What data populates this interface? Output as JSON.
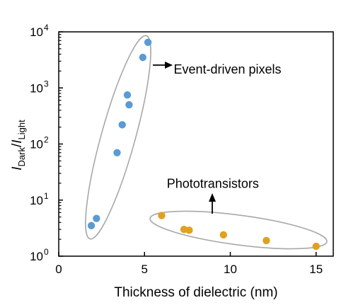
{
  "chart_data": {
    "type": "scatter",
    "xlabel": "Thickness of dielectric (nm)",
    "ylabel": {
      "i1": "I",
      "sub1": "Dark",
      "slash": "/",
      "i2": "I",
      "sub2": "Light"
    },
    "xlim": [
      0,
      16
    ],
    "ylim": [
      1,
      10000
    ],
    "yscale": "log",
    "xticks": [
      0,
      5,
      10,
      15
    ],
    "xtick_labels": [
      "0",
      "5",
      "10",
      "15"
    ],
    "yticks": [
      1,
      10,
      100,
      1000,
      10000
    ],
    "ytick_labels": [
      {
        "base": "10",
        "exp": "0"
      },
      {
        "base": "10",
        "exp": "1"
      },
      {
        "base": "10",
        "exp": "2"
      },
      {
        "base": "10",
        "exp": "3"
      },
      {
        "base": "10",
        "exp": "4"
      }
    ],
    "grid": false,
    "series": [
      {
        "color": "#5b9bd5",
        "points": [
          {
            "x": 1.9,
            "y": 3.5
          },
          {
            "x": 2.2,
            "y": 4.7
          },
          {
            "x": 3.4,
            "y": 70
          },
          {
            "x": 3.7,
            "y": 220
          },
          {
            "x": 4.0,
            "y": 750
          },
          {
            "x": 4.1,
            "y": 500
          },
          {
            "x": 4.9,
            "y": 3500
          },
          {
            "x": 5.2,
            "y": 6500
          }
        ]
      },
      {
        "color": "#e0a020",
        "points": [
          {
            "x": 6.0,
            "y": 5.3
          },
          {
            "x": 7.3,
            "y": 3.0
          },
          {
            "x": 7.6,
            "y": 2.9
          },
          {
            "x": 9.6,
            "y": 2.4
          },
          {
            "x": 12.1,
            "y": 1.9
          },
          {
            "x": 15.0,
            "y": 1.5
          }
        ]
      }
    ],
    "annotations": [
      {
        "text": "Event-driven pixels",
        "x": 6.7,
        "y": 1800
      },
      {
        "text": "Phototransistors",
        "x": 6.3,
        "y": 16.5
      }
    ]
  }
}
